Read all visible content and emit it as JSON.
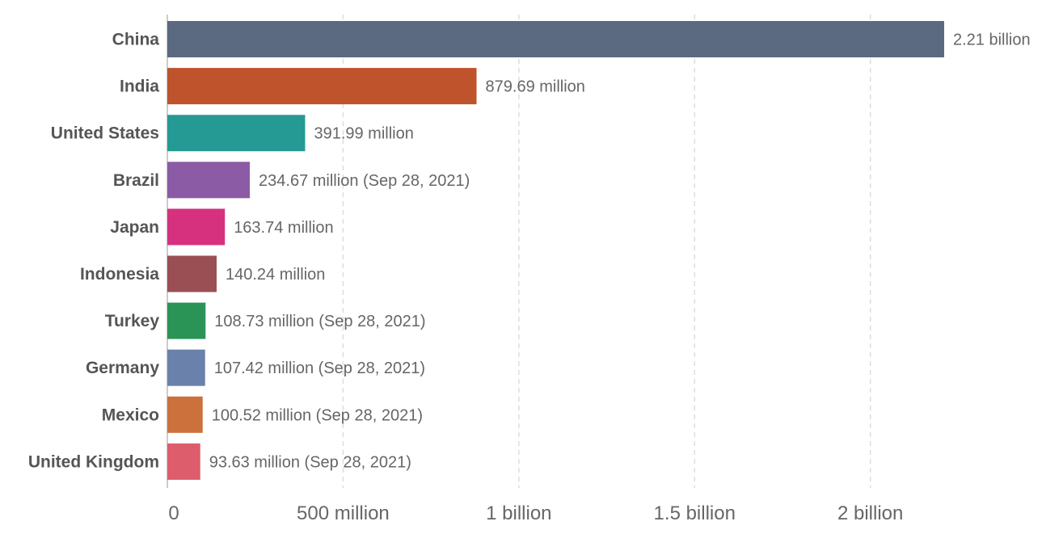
{
  "chart_data": {
    "type": "bar",
    "orientation": "horizontal",
    "categories": [
      "China",
      "India",
      "United States",
      "Brazil",
      "Japan",
      "Indonesia",
      "Turkey",
      "Germany",
      "Mexico",
      "United Kingdom"
    ],
    "values": [
      2210000000,
      879690000,
      391990000,
      234670000,
      163740000,
      140240000,
      108730000,
      107420000,
      100520000,
      93630000
    ],
    "value_labels": [
      "2.21 billion",
      "879.69 million",
      "391.99 million",
      "234.67 million (Sep 28, 2021)",
      "163.74 million",
      "140.24 million",
      "108.73 million (Sep 28, 2021)",
      "107.42 million (Sep 28, 2021)",
      "100.52 million (Sep 28, 2021)",
      "93.63 million (Sep 28, 2021)"
    ],
    "colors": [
      "#5b6a80",
      "#bf532c",
      "#259a94",
      "#8b5ba5",
      "#d6317f",
      "#9a4f55",
      "#2a9457",
      "#6a81ab",
      "#cc713c",
      "#de5d6d"
    ],
    "x_ticks": [
      {
        "value": 0,
        "label": "0"
      },
      {
        "value": 500000000,
        "label": "500 million"
      },
      {
        "value": 1000000000,
        "label": "1 billion"
      },
      {
        "value": 1500000000,
        "label": "1.5 billion"
      },
      {
        "value": 2000000000,
        "label": "2 billion"
      }
    ],
    "xlim": [
      0,
      2210000000
    ],
    "grid": true,
    "title": "",
    "xlabel": "",
    "ylabel": ""
  }
}
